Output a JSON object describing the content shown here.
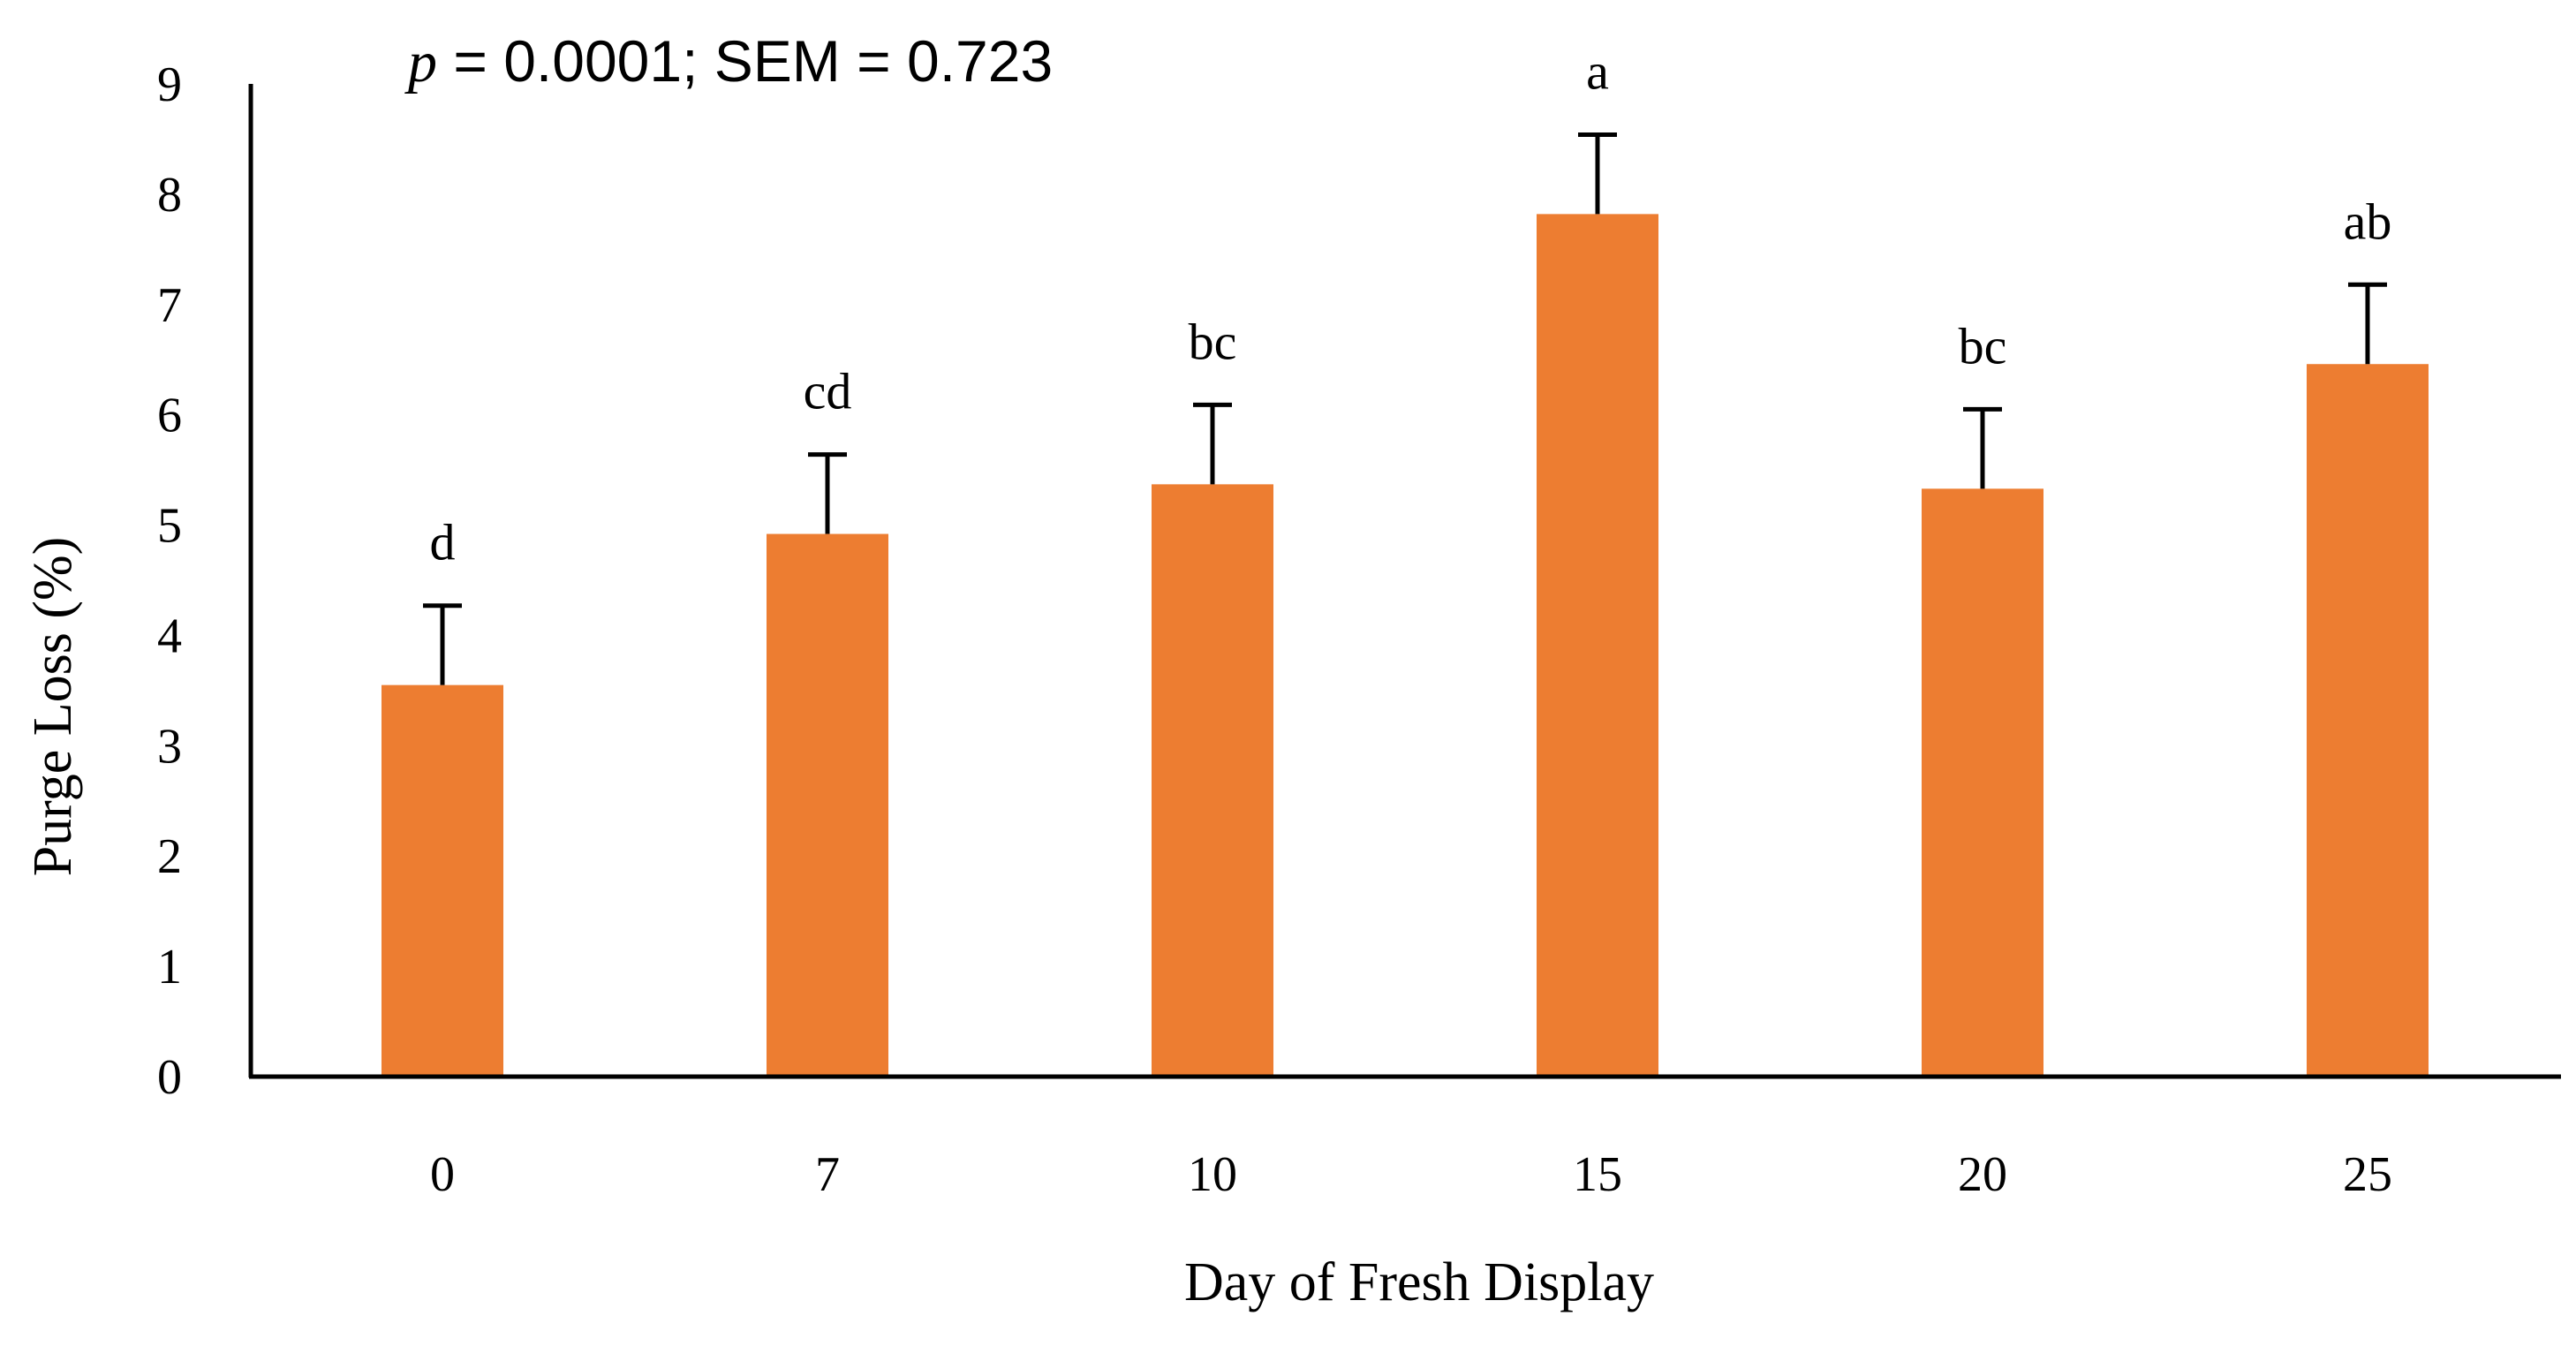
{
  "chart_data": {
    "type": "bar",
    "title": "",
    "xlabel": "Day of Fresh Display",
    "ylabel": "Purge Loss (%)",
    "ylim": [
      0,
      9
    ],
    "yticks": [
      "0",
      "1",
      "2",
      "3",
      "4",
      "5",
      "6",
      "7",
      "8",
      "9"
    ],
    "categories": [
      "0",
      "7",
      "10",
      "15",
      "20",
      "25"
    ],
    "values": [
      3.55,
      4.92,
      5.37,
      7.82,
      5.33,
      6.46
    ],
    "error_upper": [
      0.72,
      0.72,
      0.72,
      0.72,
      0.72,
      0.72
    ],
    "significance_letters": [
      "d",
      "cd",
      "bc",
      "a",
      "bc",
      "ab"
    ],
    "annotation": {
      "p_symbol": "p",
      "text": " = 0.0001; SEM = 0.723"
    },
    "bar_color": "#ED7D31",
    "error_bar_color": "#000000",
    "grid": false,
    "legend": "none"
  }
}
